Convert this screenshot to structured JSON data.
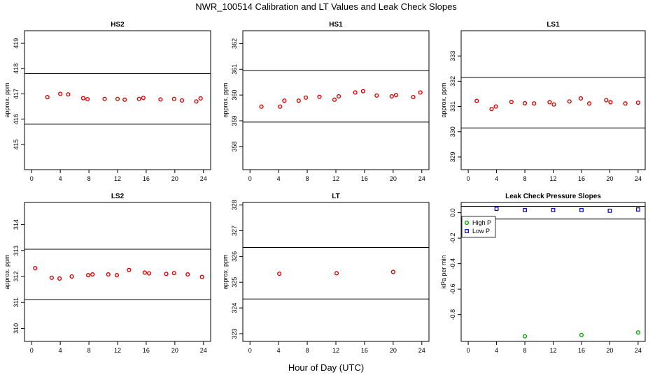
{
  "figure": {
    "title": "NWR_100514  Calibration and LT Values and Leak Check Slopes",
    "xlabel": "Hour of Day (UTC)"
  },
  "chart_data": [
    {
      "type": "scatter",
      "title": "HS2",
      "ylabel": "approx. ppm",
      "xlim": [
        -1,
        25
      ],
      "ylim": [
        414,
        419.5
      ],
      "xticks": [
        0,
        4,
        8,
        12,
        16,
        20,
        24
      ],
      "yticks": [
        415,
        416,
        417,
        418,
        419
      ],
      "hlines": [
        415.8,
        417.8
      ],
      "marker": "o",
      "color": "#e00000",
      "series": [
        {
          "x": [
            2.2,
            4.0,
            5.1,
            7.2,
            7.8,
            10.2,
            12.0,
            13.0,
            15.0,
            15.6,
            18.0,
            19.9,
            21.0,
            23.0,
            23.6
          ],
          "y": [
            416.87,
            417.0,
            416.98,
            416.83,
            416.79,
            416.8,
            416.8,
            416.77,
            416.8,
            416.84,
            416.78,
            416.8,
            416.74,
            416.7,
            416.82
          ]
        }
      ]
    },
    {
      "type": "scatter",
      "title": "HS1",
      "ylabel": "approx. ppm",
      "xlim": [
        -1,
        25
      ],
      "ylim": [
        357.1,
        362.5
      ],
      "xticks": [
        0,
        4,
        8,
        12,
        16,
        20,
        24
      ],
      "yticks": [
        358,
        359,
        360,
        361,
        362
      ],
      "hlines": [
        358.95,
        360.95
      ],
      "marker": "o",
      "color": "#e00000",
      "series": [
        {
          "x": [
            1.6,
            4.2,
            4.8,
            6.8,
            7.8,
            9.7,
            11.8,
            12.4,
            14.7,
            15.8,
            17.7,
            19.8,
            20.4,
            22.8,
            23.8
          ],
          "y": [
            359.55,
            359.55,
            359.78,
            359.78,
            359.9,
            359.93,
            359.82,
            359.95,
            360.1,
            360.15,
            359.98,
            359.95,
            360.0,
            359.92,
            360.1
          ]
        }
      ]
    },
    {
      "type": "scatter",
      "title": "LS1",
      "ylabel": "approx. ppm",
      "xlim": [
        -1,
        25
      ],
      "ylim": [
        328.5,
        334
      ],
      "xticks": [
        0,
        4,
        8,
        12,
        16,
        20,
        24
      ],
      "yticks": [
        329,
        330,
        331,
        332,
        333
      ],
      "hlines": [
        330.15,
        332.15
      ],
      "marker": "o",
      "color": "#e00000",
      "series": [
        {
          "x": [
            1.2,
            3.3,
            3.9,
            6.1,
            8.0,
            9.3,
            11.5,
            12.1,
            14.3,
            15.9,
            17.1,
            19.5,
            20.1,
            22.2,
            24.0
          ],
          "y": [
            331.22,
            330.9,
            331.0,
            331.18,
            331.13,
            331.12,
            331.17,
            331.08,
            331.2,
            331.32,
            331.12,
            331.25,
            331.17,
            331.12,
            331.15
          ]
        }
      ]
    },
    {
      "type": "scatter",
      "title": "LS2",
      "ylabel": "approx. ppm",
      "xlim": [
        -1,
        25
      ],
      "ylim": [
        309.5,
        314.85
      ],
      "xticks": [
        0,
        4,
        8,
        12,
        16,
        20,
        24
      ],
      "yticks": [
        310,
        311,
        312,
        313,
        314
      ],
      "hlines": [
        311.1,
        313.05
      ],
      "marker": "o",
      "color": "#e00000",
      "series": [
        {
          "x": [
            0.5,
            2.8,
            3.9,
            5.6,
            7.9,
            8.5,
            10.7,
            11.9,
            13.6,
            15.8,
            16.4,
            18.8,
            19.9,
            21.8,
            23.8
          ],
          "y": [
            312.32,
            311.95,
            311.92,
            312.0,
            312.05,
            312.08,
            312.08,
            312.05,
            312.25,
            312.15,
            312.12,
            312.1,
            312.13,
            312.08,
            311.98
          ]
        }
      ]
    },
    {
      "type": "scatter",
      "title": "LT",
      "ylabel": "approx. ppm",
      "xlim": [
        -1,
        25
      ],
      "ylim": [
        322.7,
        328.1
      ],
      "xticks": [
        0,
        4,
        8,
        12,
        16,
        20,
        24
      ],
      "yticks": [
        323,
        324,
        325,
        326,
        327,
        328
      ],
      "hlines": [
        324.35,
        326.35
      ],
      "marker": "o",
      "color": "#e00000",
      "series": [
        {
          "x": [
            4.1,
            12.1,
            20.0
          ],
          "y": [
            325.33,
            325.35,
            325.4
          ]
        }
      ]
    },
    {
      "type": "scatter",
      "title": "Leak Check Pressure Slopes",
      "ylabel": "kPa per min",
      "xlim": [
        -1,
        25
      ],
      "ylim": [
        -1.01,
        0.08
      ],
      "xticks": [
        0,
        4,
        8,
        12,
        16,
        20,
        24
      ],
      "yticks": [
        0.0,
        -0.2,
        -0.4,
        -0.6,
        -0.8
      ],
      "ytick_labels": [
        "0.0",
        "-0.2",
        "-0.4",
        "-0.6",
        "-0.8"
      ],
      "hlines": [
        0.05,
        -0.05
      ],
      "legend_position": "top-left",
      "series": [
        {
          "name": "High P",
          "marker": "o",
          "color": "#00aa00",
          "x": [
            8.0,
            16.0,
            24.0
          ],
          "y": [
            -0.97,
            -0.96,
            -0.94
          ]
        },
        {
          "name": "Low P",
          "marker": "square",
          "color": "#0000cc",
          "x": [
            4.0,
            8.0,
            12.0,
            16.0,
            20.0,
            24.0
          ],
          "y": [
            0.03,
            0.02,
            0.02,
            0.02,
            0.015,
            0.025
          ]
        }
      ]
    }
  ]
}
